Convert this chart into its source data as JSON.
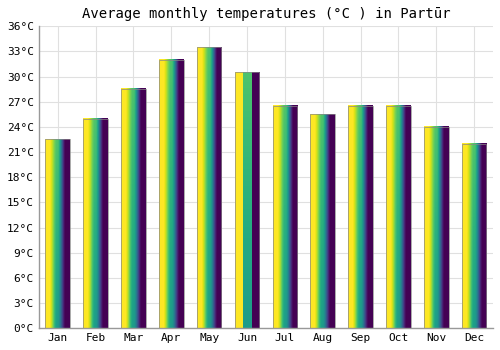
{
  "title": "Average monthly temperatures (°C ) in Partūr",
  "months": [
    "Jan",
    "Feb",
    "Mar",
    "Apr",
    "May",
    "Jun",
    "Jul",
    "Aug",
    "Sep",
    "Oct",
    "Nov",
    "Dec"
  ],
  "values": [
    22.5,
    25.0,
    28.5,
    32.0,
    33.5,
    30.5,
    26.5,
    25.5,
    26.5,
    26.5,
    24.0,
    22.0
  ],
  "bar_color_top": "#FFB800",
  "bar_color_bottom": "#FF8C00",
  "bar_edge_color": "#888888",
  "background_color": "#FFFFFF",
  "grid_color": "#E0E0E0",
  "ylim": [
    0,
    36
  ],
  "ytick_step": 3,
  "title_fontsize": 10,
  "tick_fontsize": 8,
  "font_family": "monospace"
}
